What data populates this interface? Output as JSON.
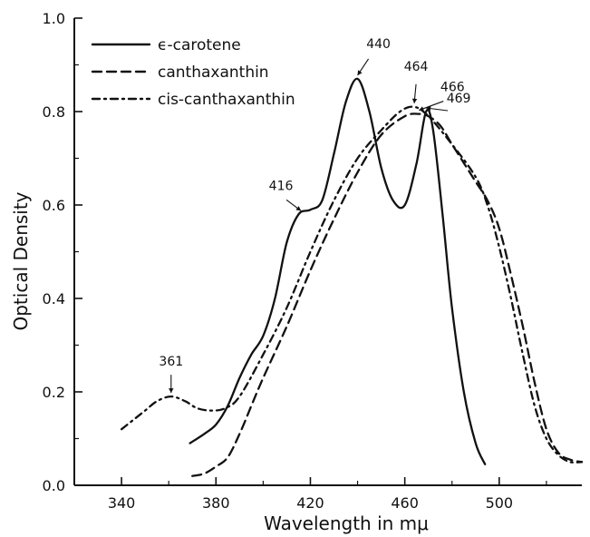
{
  "chart_data": {
    "type": "line",
    "xlabel": "Wavelength in mμ",
    "ylabel": "Optical Density",
    "xlim": [
      320,
      535
    ],
    "ylim": [
      0.0,
      1.0
    ],
    "x_ticks": [
      340,
      380,
      420,
      460,
      500
    ],
    "y_ticks": [
      0.0,
      0.2,
      0.4,
      0.6,
      0.8,
      1.0
    ],
    "x_tick_labels": [
      "340",
      "380",
      "420",
      "460",
      "500"
    ],
    "y_tick_labels": [
      "0.0",
      "0.2",
      "0.4",
      "0.6",
      "0.8",
      "1.0"
    ],
    "grid": false,
    "legend_position": "top-left",
    "series": [
      {
        "name": "ϵ-carotene",
        "line_style": "solid",
        "points": [
          [
            369,
            0.09
          ],
          [
            375,
            0.11
          ],
          [
            380,
            0.13
          ],
          [
            385,
            0.17
          ],
          [
            390,
            0.23
          ],
          [
            395,
            0.28
          ],
          [
            400,
            0.32
          ],
          [
            405,
            0.4
          ],
          [
            410,
            0.52
          ],
          [
            415,
            0.58
          ],
          [
            420,
            0.59
          ],
          [
            425,
            0.61
          ],
          [
            430,
            0.71
          ],
          [
            435,
            0.82
          ],
          [
            440,
            0.87
          ],
          [
            445,
            0.8
          ],
          [
            450,
            0.68
          ],
          [
            455,
            0.61
          ],
          [
            460,
            0.6
          ],
          [
            465,
            0.69
          ],
          [
            469,
            0.8
          ],
          [
            472,
            0.76
          ],
          [
            476,
            0.58
          ],
          [
            480,
            0.38
          ],
          [
            485,
            0.2
          ],
          [
            490,
            0.09
          ],
          [
            494,
            0.045
          ]
        ]
      },
      {
        "name": "canthaxanthin",
        "line_style": "dashed",
        "points": [
          [
            370,
            0.02
          ],
          [
            375,
            0.025
          ],
          [
            380,
            0.04
          ],
          [
            385,
            0.06
          ],
          [
            390,
            0.11
          ],
          [
            395,
            0.17
          ],
          [
            400,
            0.23
          ],
          [
            410,
            0.34
          ],
          [
            420,
            0.46
          ],
          [
            430,
            0.57
          ],
          [
            440,
            0.67
          ],
          [
            450,
            0.75
          ],
          [
            460,
            0.79
          ],
          [
            466,
            0.795
          ],
          [
            470,
            0.79
          ],
          [
            475,
            0.77
          ],
          [
            480,
            0.73
          ],
          [
            485,
            0.69
          ],
          [
            490,
            0.65
          ],
          [
            495,
            0.61
          ],
          [
            500,
            0.55
          ],
          [
            505,
            0.45
          ],
          [
            510,
            0.34
          ],
          [
            515,
            0.22
          ],
          [
            520,
            0.12
          ],
          [
            525,
            0.07
          ],
          [
            530,
            0.055
          ],
          [
            535,
            0.05
          ]
        ]
      },
      {
        "name": "cis-canthaxanthin",
        "line_style": "dashdot",
        "points": [
          [
            340,
            0.12
          ],
          [
            345,
            0.14
          ],
          [
            350,
            0.16
          ],
          [
            355,
            0.18
          ],
          [
            361,
            0.19
          ],
          [
            367,
            0.18
          ],
          [
            372,
            0.165
          ],
          [
            378,
            0.16
          ],
          [
            384,
            0.165
          ],
          [
            390,
            0.19
          ],
          [
            400,
            0.28
          ],
          [
            410,
            0.38
          ],
          [
            420,
            0.5
          ],
          [
            430,
            0.61
          ],
          [
            440,
            0.7
          ],
          [
            450,
            0.76
          ],
          [
            458,
            0.8
          ],
          [
            464,
            0.81
          ],
          [
            470,
            0.79
          ],
          [
            480,
            0.73
          ],
          [
            490,
            0.66
          ],
          [
            495,
            0.6
          ],
          [
            500,
            0.51
          ],
          [
            505,
            0.4
          ],
          [
            510,
            0.28
          ],
          [
            515,
            0.17
          ],
          [
            520,
            0.1
          ],
          [
            525,
            0.065
          ],
          [
            530,
            0.05
          ],
          [
            535,
            0.05
          ]
        ]
      }
    ],
    "annotations": [
      {
        "text": "440",
        "x": 440,
        "y": 0.87
      },
      {
        "text": "416",
        "x": 416,
        "y": 0.58
      },
      {
        "text": "361",
        "x": 361,
        "y": 0.19
      },
      {
        "text": "464",
        "x": 464,
        "y": 0.81
      },
      {
        "text": "466",
        "x": 466,
        "y": 0.795
      },
      {
        "text": "469",
        "x": 469,
        "y": 0.8
      }
    ]
  }
}
